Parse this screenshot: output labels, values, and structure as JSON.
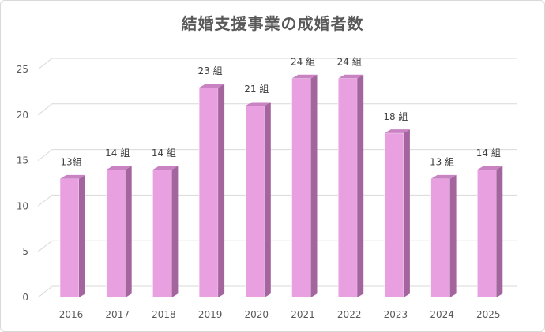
{
  "chart_data": {
    "type": "bar",
    "title": "結婚支援事業の成婚者数",
    "xlabel": "",
    "ylabel": "",
    "categories": [
      "2016",
      "2017",
      "2018",
      "2019",
      "2020",
      "2021",
      "2022",
      "2023",
      "2024",
      "2025"
    ],
    "values": [
      13,
      14,
      14,
      23,
      21,
      24,
      24,
      18,
      13,
      14
    ],
    "data_labels": [
      "13組",
      "14 組",
      "14 組",
      "23 組",
      "21 組",
      "24 組",
      "24 組",
      "18 組",
      "13 組",
      "14 組"
    ],
    "ylim": [
      0,
      25
    ],
    "yticks": [
      0,
      5,
      10,
      15,
      20,
      25
    ],
    "grid": true,
    "legend": "none",
    "colors": {
      "bar_front": "#e8a0e0",
      "bar_side": "#a4659f",
      "bar_top": "#c983c3",
      "grid": "#d9d9d9",
      "axis_text": "#595959"
    }
  }
}
